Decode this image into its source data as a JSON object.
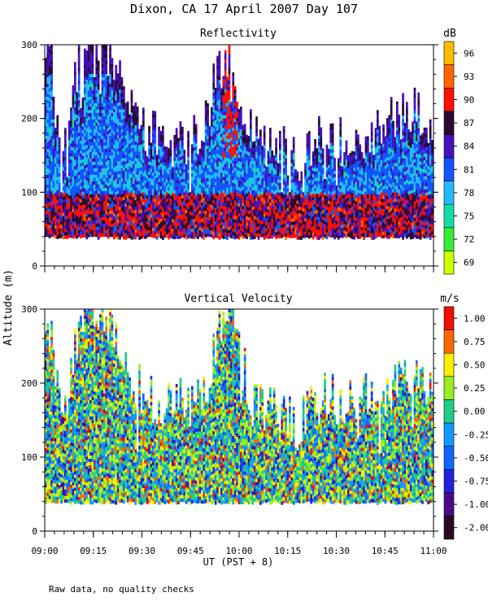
{
  "title": "Dixon, CA 17 April 2007  Day 107",
  "y_axis_label": "Altitude (m)",
  "x_axis_label": "UT  (PST + 8)",
  "footnote": "Raw data, no quality checks",
  "chart_data": [
    {
      "type": "heatmap",
      "title": "Reflectivity",
      "unit": "dB",
      "xlabel": "UT  (PST + 8)",
      "ylabel": "Altitude (m)",
      "x_ticks": [
        "09:00",
        "09:15",
        "09:30",
        "09:45",
        "10:00",
        "10:15",
        "10:30",
        "10:45",
        "11:00"
      ],
      "y_ticks": [
        "0",
        "100",
        "200",
        "300"
      ],
      "xlim_minutes": [
        0,
        120
      ],
      "ylim": [
        0,
        300
      ],
      "colorbar": {
        "labels": [
          "69",
          "72",
          "75",
          "78",
          "81",
          "84",
          "87",
          "90",
          "93",
          "96"
        ],
        "colors": [
          "#ccff00",
          "#33ee33",
          "#11ddaa",
          "#22bbff",
          "#1155ff",
          "#4411bb",
          "#2a0a33",
          "#ff1100",
          "#ff6600",
          "#ffbb00"
        ]
      },
      "data_bottom_m": 40,
      "echo_top_profile_m": [
        [
          0,
          270
        ],
        [
          2,
          280
        ],
        [
          4,
          180
        ],
        [
          6,
          140
        ],
        [
          8,
          230
        ],
        [
          10,
          270
        ],
        [
          12,
          280
        ],
        [
          14,
          300
        ],
        [
          16,
          300
        ],
        [
          18,
          300
        ],
        [
          20,
          290
        ],
        [
          22,
          270
        ],
        [
          24,
          240
        ],
        [
          26,
          220
        ],
        [
          28,
          200
        ],
        [
          30,
          190
        ],
        [
          32,
          180
        ],
        [
          34,
          178
        ],
        [
          36,
          178
        ],
        [
          38,
          178
        ],
        [
          40,
          176
        ],
        [
          42,
          175
        ],
        [
          44,
          172
        ],
        [
          46,
          172
        ],
        [
          48,
          180
        ],
        [
          50,
          200
        ],
        [
          52,
          240
        ],
        [
          54,
          270
        ],
        [
          56,
          290
        ],
        [
          58,
          280
        ],
        [
          60,
          240
        ],
        [
          62,
          210
        ],
        [
          64,
          180
        ],
        [
          66,
          170
        ],
        [
          68,
          170
        ],
        [
          70,
          168
        ],
        [
          72,
          165
        ],
        [
          74,
          160
        ],
        [
          76,
          150
        ],
        [
          78,
          140
        ],
        [
          80,
          150
        ],
        [
          82,
          170
        ],
        [
          84,
          175
        ],
        [
          86,
          180
        ],
        [
          88,
          180
        ],
        [
          90,
          175
        ],
        [
          92,
          170
        ],
        [
          94,
          170
        ],
        [
          96,
          175
        ],
        [
          98,
          178
        ],
        [
          100,
          180
        ],
        [
          102,
          185
        ],
        [
          104,
          190
        ],
        [
          106,
          195
        ],
        [
          108,
          200
        ],
        [
          110,
          205
        ],
        [
          112,
          210
        ],
        [
          114,
          210
        ],
        [
          116,
          205
        ],
        [
          118,
          200
        ],
        [
          120,
          190
        ]
      ],
      "low_level_peak_dB": 90
    },
    {
      "type": "heatmap",
      "title": "Vertical Velocity",
      "unit": "m/s",
      "xlabel": "UT  (PST + 8)",
      "ylabel": "Altitude (m)",
      "x_ticks": [
        "09:00",
        "09:15",
        "09:30",
        "09:45",
        "10:00",
        "10:15",
        "10:30",
        "10:45",
        "11:00"
      ],
      "y_ticks": [
        "0",
        "100",
        "200",
        "300"
      ],
      "xlim_minutes": [
        0,
        120
      ],
      "ylim": [
        0,
        300
      ],
      "colorbar": {
        "labels": [
          "-2.00",
          "-1.00",
          "-0.75",
          "-0.50",
          "-0.25",
          "0.00",
          "0.25",
          "0.50",
          "0.75",
          "1.00"
        ],
        "colors": [
          "#2a0a22",
          "#4a0a88",
          "#2222dd",
          "#1166ff",
          "#1199ff",
          "#22cc88",
          "#99ee22",
          "#ffee00",
          "#ff6600",
          "#ee1100"
        ]
      },
      "data_bottom_m": 40,
      "echo_top_profile_m": [
        [
          0,
          270
        ],
        [
          2,
          280
        ],
        [
          4,
          180
        ],
        [
          6,
          140
        ],
        [
          8,
          230
        ],
        [
          10,
          270
        ],
        [
          12,
          280
        ],
        [
          14,
          300
        ],
        [
          16,
          300
        ],
        [
          18,
          300
        ],
        [
          20,
          290
        ],
        [
          22,
          270
        ],
        [
          24,
          240
        ],
        [
          26,
          220
        ],
        [
          28,
          200
        ],
        [
          30,
          190
        ],
        [
          32,
          180
        ],
        [
          34,
          178
        ],
        [
          36,
          178
        ],
        [
          38,
          178
        ],
        [
          40,
          176
        ],
        [
          42,
          175
        ],
        [
          44,
          172
        ],
        [
          46,
          172
        ],
        [
          48,
          180
        ],
        [
          50,
          200
        ],
        [
          52,
          240
        ],
        [
          54,
          270
        ],
        [
          56,
          290
        ],
        [
          58,
          280
        ],
        [
          60,
          240
        ],
        [
          62,
          210
        ],
        [
          64,
          180
        ],
        [
          66,
          170
        ],
        [
          68,
          170
        ],
        [
          70,
          168
        ],
        [
          72,
          165
        ],
        [
          74,
          160
        ],
        [
          76,
          150
        ],
        [
          78,
          140
        ],
        [
          80,
          150
        ],
        [
          82,
          170
        ],
        [
          84,
          175
        ],
        [
          86,
          180
        ],
        [
          88,
          180
        ],
        [
          90,
          175
        ],
        [
          92,
          170
        ],
        [
          94,
          170
        ],
        [
          96,
          175
        ],
        [
          98,
          178
        ],
        [
          100,
          180
        ],
        [
          102,
          185
        ],
        [
          104,
          190
        ],
        [
          106,
          195
        ],
        [
          108,
          200
        ],
        [
          110,
          205
        ],
        [
          112,
          210
        ],
        [
          114,
          210
        ],
        [
          116,
          205
        ],
        [
          118,
          200
        ],
        [
          120,
          190
        ]
      ]
    }
  ]
}
